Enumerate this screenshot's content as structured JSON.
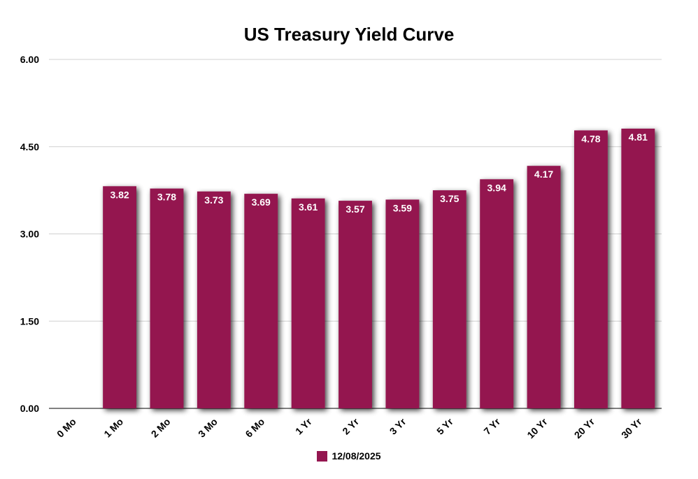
{
  "chart_data": {
    "type": "bar",
    "title": "US Treasury Yield Curve",
    "xlabel": "",
    "ylabel": "",
    "categories": [
      "0 Mo",
      "1 Mo",
      "2 Mo",
      "3 Mo",
      "6 Mo",
      "1 Yr",
      "2 Yr",
      "3 Yr",
      "5 Yr",
      "7 Yr",
      "10 Yr",
      "20 Yr",
      "30 Yr"
    ],
    "series": [
      {
        "name": "12/08/2025",
        "color": "#941650",
        "values": [
          null,
          3.82,
          3.78,
          3.73,
          3.69,
          3.61,
          3.57,
          3.59,
          3.75,
          3.94,
          4.17,
          4.78,
          4.81
        ],
        "labels": [
          "",
          "3.82",
          "3.78",
          "3.73",
          "3.69",
          "3.61",
          "3.57",
          "3.59",
          "3.75",
          "3.94",
          "4.17",
          "4.78",
          "4.81"
        ]
      }
    ],
    "ylim": [
      0,
      6
    ],
    "yticks": [
      "0.00",
      "1.50",
      "3.00",
      "4.50",
      "6.00"
    ],
    "ytick_values": [
      0,
      1.5,
      3,
      4.5,
      6
    ],
    "grid": true,
    "legend_position": "bottom-center"
  }
}
